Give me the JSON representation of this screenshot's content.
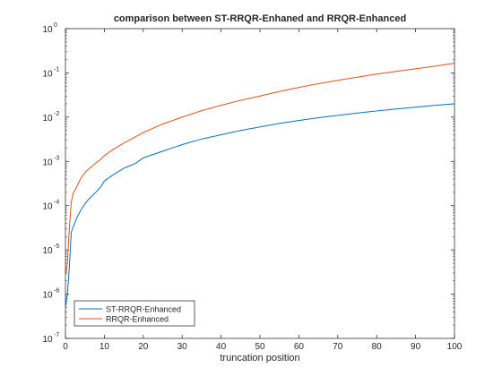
{
  "chart_data": {
    "type": "line",
    "title": "comparison between ST-RRQR-Enhaned and RRQR-Enhanced",
    "xlabel": "truncation position",
    "ylabel": "",
    "xlim": [
      0,
      100
    ],
    "ylim": [
      1e-07,
      1
    ],
    "yscale": "log",
    "grid": false,
    "legend_position": "bottom-left",
    "x_ticks": [
      "0",
      "10",
      "20",
      "30",
      "40",
      "50",
      "60",
      "70",
      "80",
      "90",
      "100"
    ],
    "y_ticks": [
      {
        "base": "10",
        "exp": "-7"
      },
      {
        "base": "10",
        "exp": "-6"
      },
      {
        "base": "10",
        "exp": "-5"
      },
      {
        "base": "10",
        "exp": "-4"
      },
      {
        "base": "10",
        "exp": "-3"
      },
      {
        "base": "10",
        "exp": "-2"
      },
      {
        "base": "10",
        "exp": "-1"
      },
      {
        "base": "10",
        "exp": "0"
      }
    ],
    "series": [
      {
        "name": "ST-RRQR-Enhanced",
        "color": "#0072bd",
        "x": [
          0,
          0.5,
          1,
          1.5,
          2,
          3,
          4,
          5,
          6,
          7,
          8,
          9,
          10,
          12,
          15,
          18,
          20,
          25,
          30,
          35,
          40,
          45,
          50,
          55,
          60,
          65,
          70,
          75,
          80,
          85,
          90,
          95,
          100
        ],
        "y": [
          5e-07,
          1e-06,
          4e-06,
          2.5e-05,
          3.3e-05,
          5.5e-05,
          8e-05,
          0.00011,
          0.00014,
          0.00017,
          0.00021,
          0.00026,
          0.00036,
          0.00048,
          0.0007,
          0.0009,
          0.0012,
          0.0017,
          0.0024,
          0.0032,
          0.004,
          0.005,
          0.006,
          0.0072,
          0.0084,
          0.0097,
          0.011,
          0.0123,
          0.0138,
          0.0153,
          0.0168,
          0.0185,
          0.02
        ]
      },
      {
        "name": "RRQR-Enhanced",
        "color": "#d95319",
        "x": [
          0,
          0.5,
          1,
          1.5,
          2,
          3,
          4,
          5,
          6,
          7,
          8,
          9,
          10,
          12,
          15,
          18,
          20,
          25,
          30,
          35,
          40,
          45,
          50,
          55,
          60,
          65,
          70,
          75,
          80,
          85,
          90,
          95,
          100
        ],
        "y": [
          2.5e-06,
          5e-06,
          3e-05,
          0.00012,
          0.00019,
          0.00028,
          0.00042,
          0.00055,
          0.00068,
          0.0008,
          0.00095,
          0.0011,
          0.00135,
          0.0018,
          0.0026,
          0.0036,
          0.0045,
          0.007,
          0.01,
          0.014,
          0.0185,
          0.024,
          0.03,
          0.038,
          0.047,
          0.057,
          0.068,
          0.08,
          0.094,
          0.108,
          0.124,
          0.142,
          0.165
        ]
      }
    ]
  }
}
